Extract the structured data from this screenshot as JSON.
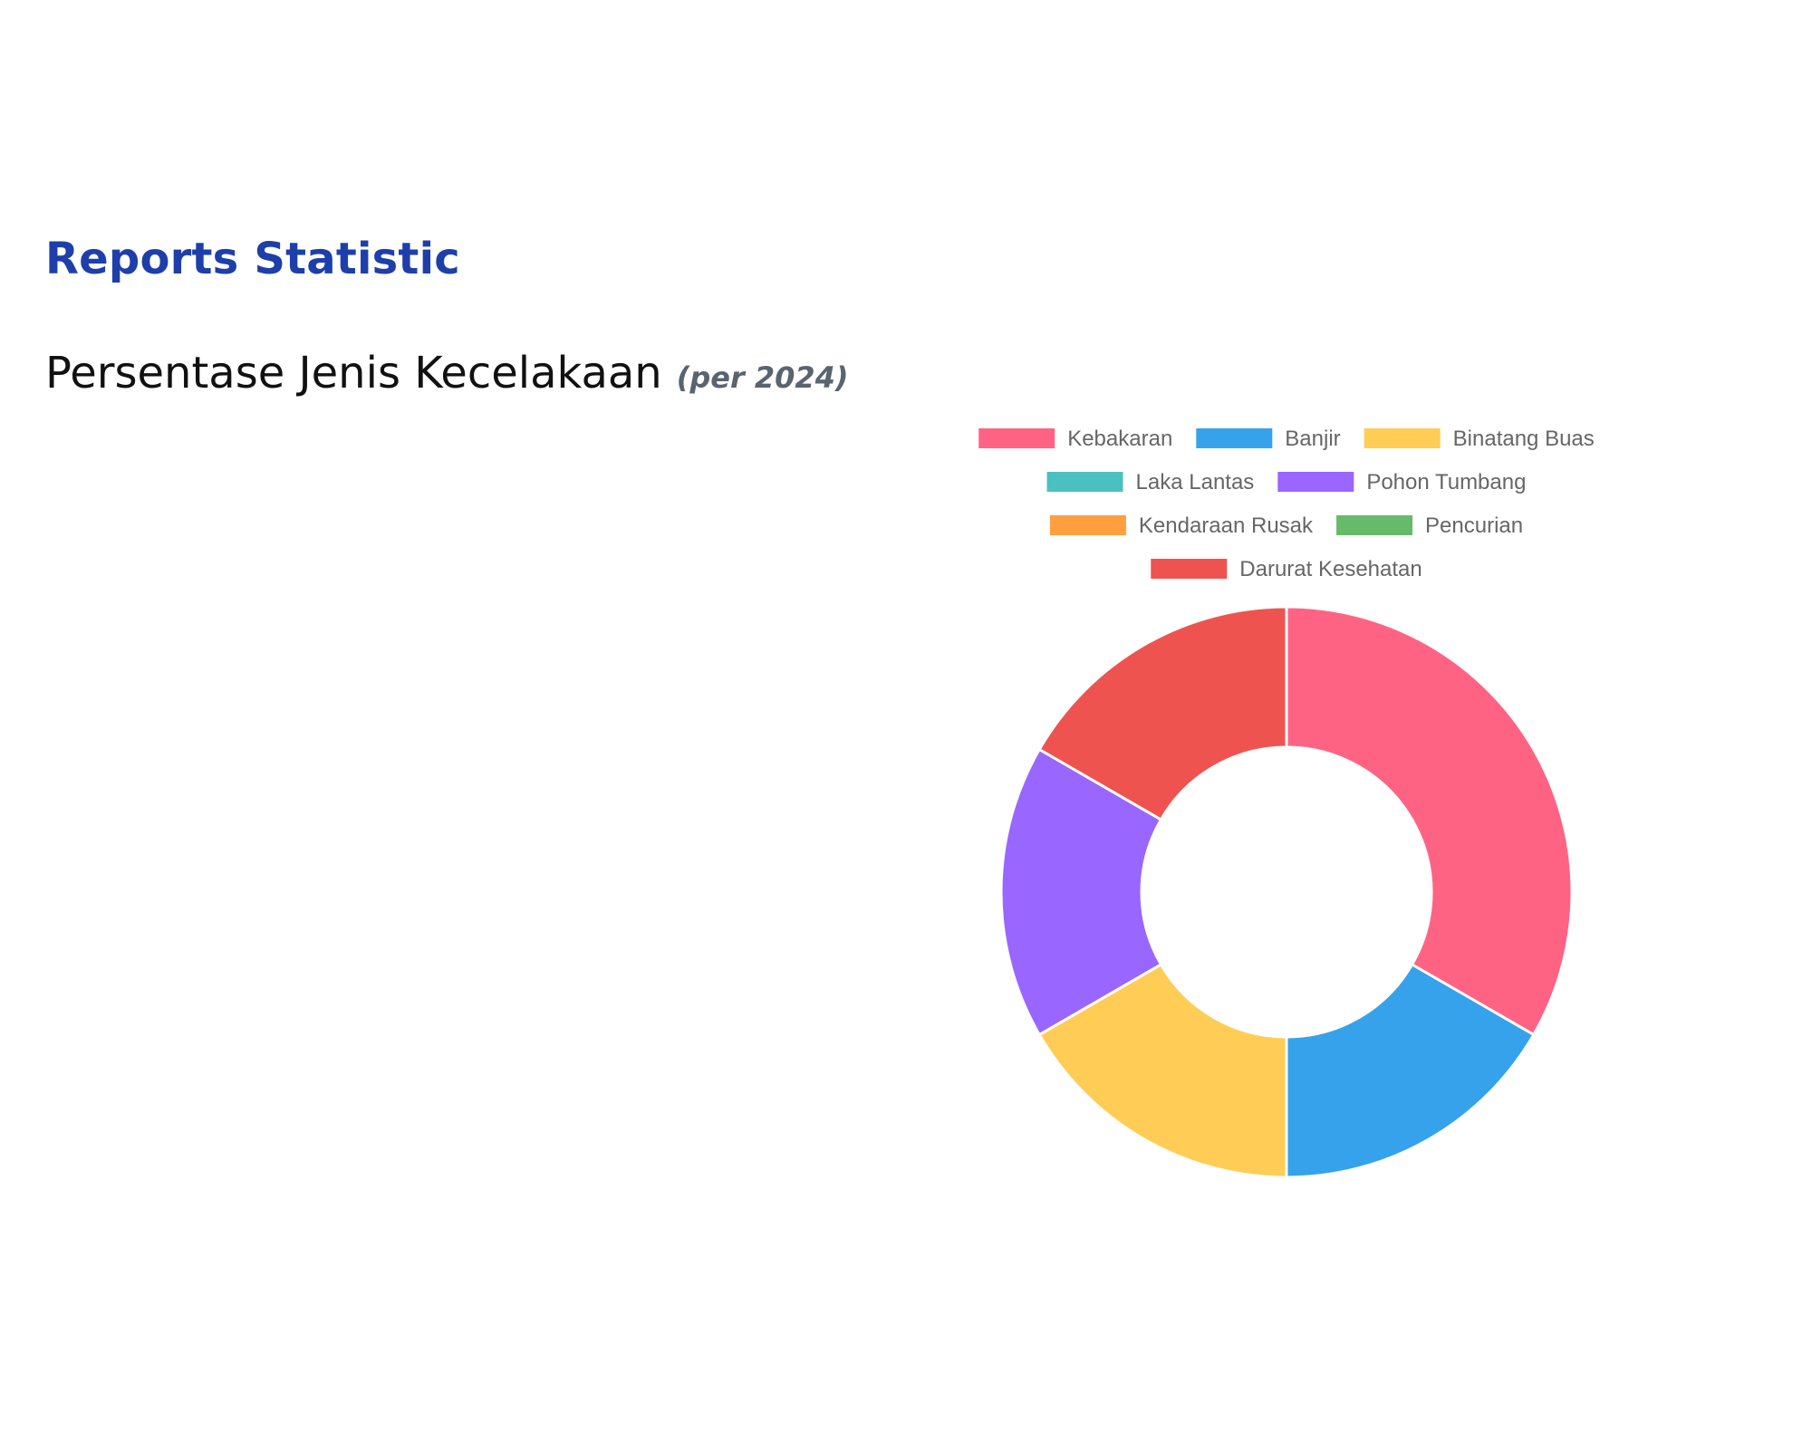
{
  "page": {
    "heading": "Reports Statistic",
    "section_title": "Persentase Jenis Kecelakaan",
    "section_subtitle": "(per 2024)"
  },
  "chart_data": {
    "type": "pie",
    "variant": "doughnut",
    "legend_position": "top",
    "categories": [
      "Kebakaran",
      "Banjir",
      "Binatang Buas",
      "Laka Lantas",
      "Pohon Tumbang",
      "Kendaraan Rusak",
      "Pencurian",
      "Darurat Kesehatan"
    ],
    "values": [
      2,
      1,
      1,
      0,
      1,
      0,
      0,
      1
    ],
    "colors": [
      "#ff6384",
      "#36a2eb",
      "#ffcd56",
      "#4bc0c0",
      "#9966ff",
      "#ff9f40",
      "#66bb6a",
      "#ef5350"
    ]
  }
}
